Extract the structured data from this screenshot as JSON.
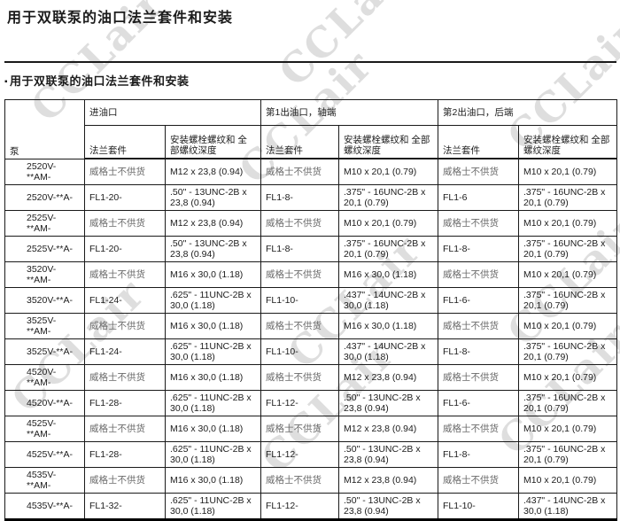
{
  "page": {
    "title": "用于双联泵的油口法兰套件和安装",
    "section_bullet": "▪",
    "section_title": "用于双联泵的油口法兰套件和安装"
  },
  "watermark": {
    "text": "CCLair"
  },
  "table": {
    "pump_header": "泵",
    "groups": [
      {
        "label": "进油口"
      },
      {
        "label": "第1出油口，轴端"
      },
      {
        "label": "第2出油口，后端"
      }
    ],
    "sub_flange": "法兰套件",
    "sub_thread": "安装螺栓螺纹和 全部螺纹深度",
    "not_supplied_text": "威格士不供货",
    "rows": [
      {
        "pump": "2520V-**AM-",
        "cells": [
          "威格士不供货",
          "M12 x 23,8 (0.94)",
          "威格士不供货",
          "M10 x 20,1 (0.79)",
          "威格士不供货",
          "M10 x 20,1 (0.79)"
        ]
      },
      {
        "pump": "2520V-**A-",
        "cells": [
          "FL1-20-",
          ".50\" - 13UNC-2B x 23,8 (0.94)",
          "FL1-8-",
          ".375\" - 16UNC-2B x 20,1 (0.79)",
          "FL1-6",
          ".375\" - 16UNC-2B x 20,1 (0.79)"
        ]
      },
      {
        "pump": "2525V-**AM-",
        "cells": [
          "威格士不供货",
          "M12 x 23,8 (0.94)",
          "威格士不供货",
          "M10 x 20,1 (0.79)",
          "威格士不供货",
          "M10 x 20,1 (0.79)"
        ]
      },
      {
        "pump": "2525V-**A-",
        "cells": [
          "FL1-20-",
          ".50\" - 13UNC-2B x 23,8 (0.94)",
          "FL1-8-",
          ".375\" - 16UNC-2B x 20,1 (0.79)",
          "FL1-8-",
          ".375\" - 16UNC-2B x 20,1 (0.79)"
        ]
      },
      {
        "pump": "3520V-**AM-",
        "cells": [
          "威格士不供货",
          "M16 x 30,0 (1.18)",
          "威格士不供货",
          "M16 x 30,0 (1.18)",
          "威格士不供货",
          "M10 x 20,1 (0.79)"
        ]
      },
      {
        "pump": "3520V-**A-",
        "cells": [
          "FL1-24-",
          ".625\" - 11UNC-2B x 30,0 (1.18)",
          "FL1-10-",
          ".437\" - 14UNC-2B x 30,0 (1.18)",
          "FL1-6-",
          ".375\" - 16UNC-2B x 20,1 (0.79)"
        ]
      },
      {
        "pump": "3525V-**AM-",
        "cells": [
          "威格士不供货",
          "M16 x 30,0 (1.18)",
          "威格士不供货",
          "M16 x 30,0 (1.18)",
          "威格士不供货",
          "M10 x 20,1 (0.79)"
        ]
      },
      {
        "pump": "3525V-**A-",
        "cells": [
          "FL1-24-",
          ".625\" - 11UNC-2B x 30,0 (1.18)",
          "FL1-10-",
          ".437\" - 14UNC-2B x 30,0 (1.18)",
          "FL1-8-",
          ".375\" - 16UNC-2B x 20,1 (0.79)"
        ]
      },
      {
        "pump": "4520V-**AM-",
        "cells": [
          "威格士不供货",
          "M16 x 30,0 (1.18)",
          "威格士不供货",
          "M12 x 23,8 (0.94)",
          "威格士不供货",
          "M10 x 20,1 (0.79)"
        ]
      },
      {
        "pump": "4520V-**A-",
        "cells": [
          "FL1-28-",
          ".625\" - 11UNC-2B x 30,0 (1.18)",
          "FL1-12-",
          ".50\" - 13UNC-2B x 23,8 (0.94)",
          "FL1-6-",
          ".375\" - 16UNC-2B x 20,1 (0.79)"
        ]
      },
      {
        "pump": "4525V-**AM-",
        "cells": [
          "威格士不供货",
          "M16 x 30,0 (1.18)",
          "威格士不供货",
          "M12 x 23,8 (0.94)",
          "威格士不供货",
          "M10 x 20,1 (0.79)"
        ]
      },
      {
        "pump": "4525V-**A-",
        "cells": [
          "FL1-28-",
          ".625\" - 11UNC-2B x 30,0 (1.18)",
          "FL1-12-",
          ".50\" - 13UNC-2B x 23,8 (0.94)",
          "FL1-8-",
          ".375\" - 16UNC-2B x 20,1 (0.79)"
        ]
      },
      {
        "pump": "4535V-**AM-",
        "cells": [
          "威格士不供货",
          "M16 x 30,0 (1.18)",
          "威格士不供货",
          "M12 x 23,8 (0.94)",
          "威格士不供货",
          "M10 x 20,1 (0.79)"
        ]
      },
      {
        "pump": "4535V-**A-",
        "cells": [
          "FL1-32-",
          ".625\" - 11UNC-2B x 30,0 (1.18)",
          "FL1-12-",
          ".50\" - 13UNC-2B x 23,8 (0.94)",
          "FL1-10-",
          ".437\" - 14UNC-2B x 30,0 (1.18)"
        ]
      }
    ]
  }
}
